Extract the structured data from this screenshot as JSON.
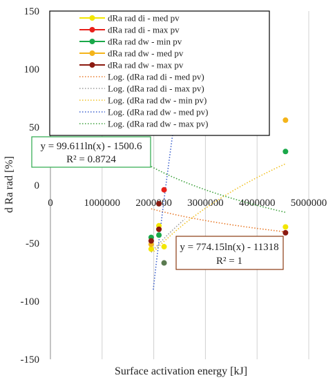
{
  "chart_data": {
    "type": "scatter",
    "xlabel": "Surface activation energy [kJ]",
    "ylabel": "d Ra rad [%]",
    "xlim": [
      0,
      5000000
    ],
    "ylim": [
      -150,
      150
    ],
    "x_ticks": [
      "0",
      "1000000",
      "2000000",
      "3000000",
      "4000000",
      "5000000"
    ],
    "y_ticks": [
      "150",
      "100",
      "50",
      "0",
      "-50",
      "-100",
      "-150"
    ],
    "grid": "vertical",
    "legend_position": "top",
    "series": [
      {
        "name": "dRa rad di  - med pv",
        "color": "#f2e600",
        "points": [
          [
            1950000,
            -55
          ],
          [
            2100000,
            -35
          ],
          [
            2200000,
            -53
          ],
          [
            4550000,
            -36
          ]
        ]
      },
      {
        "name": "dRa rad di  - max pv",
        "color": "#e8201a",
        "points": [
          [
            2200000,
            -4
          ]
        ]
      },
      {
        "name": "dRa rad dw  - min pv",
        "color": "#1aa84a",
        "points": [
          [
            1950000,
            -45
          ],
          [
            2100000,
            -43
          ],
          [
            4550000,
            29
          ]
        ]
      },
      {
        "name": "dRa rad dw  - med pv",
        "color": "#f4b41a",
        "points": [
          [
            1950000,
            -51
          ],
          [
            2100000,
            -38
          ],
          [
            4550000,
            56
          ]
        ]
      },
      {
        "name": "dRa rad dw  - max pv",
        "color": "#8b1a10",
        "points": [
          [
            1950000,
            -48
          ],
          [
            2100000,
            -38
          ],
          [
            2100000,
            -16
          ],
          [
            4550000,
            -41
          ]
        ]
      },
      {
        "name": "",
        "color": "#5a7a50",
        "points": [
          [
            2200000,
            -67
          ]
        ]
      }
    ],
    "trendlines": [
      {
        "name": "Log. (dRa rad di  - med pv)",
        "color": "#e87a2a",
        "a": -23.5,
        "b": 320,
        "x_range": [
          1950000,
          4550000
        ]
      },
      {
        "name": "Log. (dRa rad di  - max pv)",
        "color": "#9a9a9a",
        "a": 99.611,
        "b": -1500.6,
        "x_range": [
          1950000,
          2600000
        ]
      },
      {
        "name": "Log. (dRa rad dw  - min pv)",
        "color": "#f0c020",
        "a": 92,
        "b": -1392,
        "x_range": [
          2000000,
          4550000
        ]
      },
      {
        "name": "Log. (dRa rad dw  - med pv)",
        "color": "#3a5fcd",
        "a": 774.15,
        "b": -11318,
        "x_range": [
          1990000,
          4550000
        ]
      },
      {
        "name": "Log. (dRa rad dw  - max pv)",
        "color": "#3aa03a",
        "a": -46.6,
        "b": 691,
        "x_range": [
          1950000,
          4550000
        ]
      }
    ],
    "annotations": [
      {
        "equation": "y = 99.611ln(x) - 1500.6",
        "r2": "R² = 0.8724",
        "border": "#2aa84a"
      },
      {
        "equation": "y = 774.15ln(x) - 11318",
        "r2": "R² = 1",
        "border": "#8a3a10"
      }
    ]
  }
}
